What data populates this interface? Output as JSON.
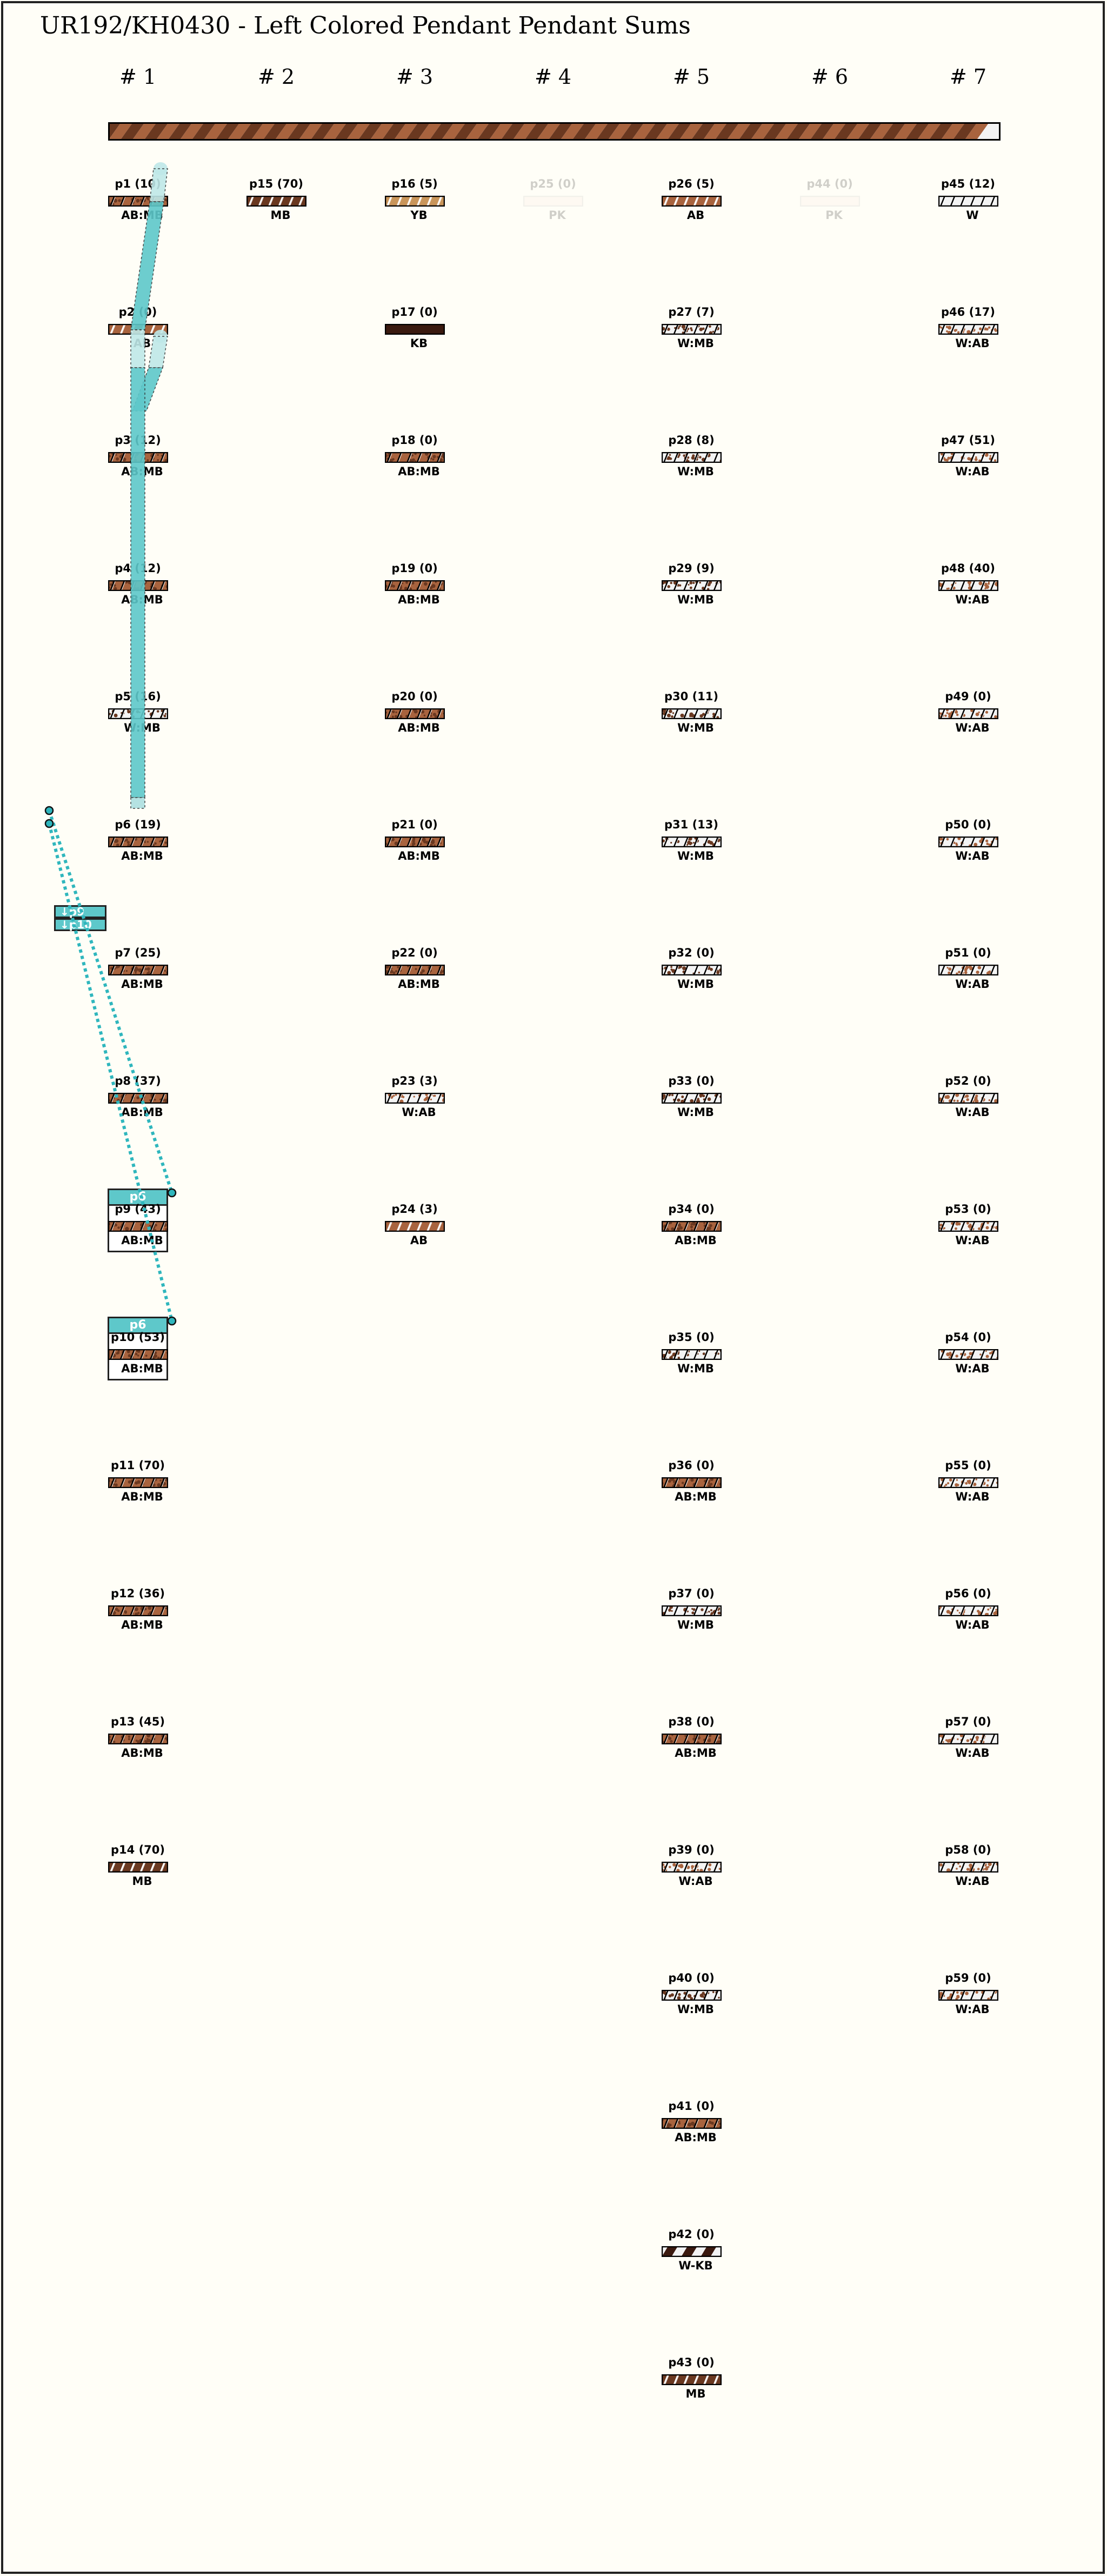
{
  "title": "UR192/KH0430 - Left Colored Pendant Pendant Sums",
  "colors": {
    "AB": "#a8633e",
    "MB": "#6a3820",
    "KB": "#3b1a10",
    "YB": "#c9955a",
    "W": "#f3f3f3",
    "PK": "#fbe6de",
    "teal": "#5ec8ca",
    "teal_dark": "#2fb6bd",
    "background": "#fffef7"
  },
  "main_cord": {
    "color": "AB:MB"
  },
  "columns": [
    {
      "label": "# 1",
      "pendants": [
        {
          "label": "p1 (10)",
          "color": "AB:MB"
        },
        {
          "label": "p2 (0)",
          "color": "AB"
        },
        {
          "label": "p3 (12)",
          "color": "AB:MB"
        },
        {
          "label": "p4 (12)",
          "color": "AB:MB"
        },
        {
          "label": "p5 (16)",
          "color": "W:MB"
        },
        {
          "label": "p6 (19)",
          "color": "AB:MB",
          "markers": [
            "↓p9",
            "↓p10"
          ]
        },
        {
          "label": "p7 (25)",
          "color": "AB:MB"
        },
        {
          "label": "p8 (37)",
          "color": "AB:MB"
        },
        {
          "label": "p9 (43)",
          "color": "AB:MB",
          "parent": "p6"
        },
        {
          "label": "p10 (53)",
          "color": "AB:MB",
          "parent": "p6"
        },
        {
          "label": "p11 (70)",
          "color": "AB:MB"
        },
        {
          "label": "p12 (36)",
          "color": "AB:MB"
        },
        {
          "label": "p13 (45)",
          "color": "AB:MB"
        },
        {
          "label": "p14 (70)",
          "color": "MB"
        }
      ]
    },
    {
      "label": "# 2",
      "pendants": [
        {
          "label": "p15 (70)",
          "color": "MB"
        }
      ]
    },
    {
      "label": "# 3",
      "pendants": [
        {
          "label": "p16 (5)",
          "color": "YB"
        },
        {
          "label": "p17 (0)",
          "color": "KB"
        },
        {
          "label": "p18 (0)",
          "color": "AB:MB"
        },
        {
          "label": "p19 (0)",
          "color": "AB:MB"
        },
        {
          "label": "p20 (0)",
          "color": "AB:MB"
        },
        {
          "label": "p21 (0)",
          "color": "AB:MB"
        },
        {
          "label": "p22 (0)",
          "color": "AB:MB"
        },
        {
          "label": "p23 (3)",
          "color": "W:AB"
        },
        {
          "label": "p24 (3)",
          "color": "AB"
        }
      ]
    },
    {
      "label": "# 4",
      "pendants": [
        {
          "label": "p25 (0)",
          "color": "PK",
          "faded": true
        }
      ]
    },
    {
      "label": "# 5",
      "pendants": [
        {
          "label": "p26 (5)",
          "color": "AB"
        },
        {
          "label": "p27 (7)",
          "color": "W:MB"
        },
        {
          "label": "p28 (8)",
          "color": "W:MB"
        },
        {
          "label": "p29 (9)",
          "color": "W:MB"
        },
        {
          "label": "p30 (11)",
          "color": "W:MB"
        },
        {
          "label": "p31 (13)",
          "color": "W:MB"
        },
        {
          "label": "p32 (0)",
          "color": "W:MB"
        },
        {
          "label": "p33 (0)",
          "color": "W:MB"
        },
        {
          "label": "p34 (0)",
          "color": "AB:MB"
        },
        {
          "label": "p35 (0)",
          "color": "W:MB"
        },
        {
          "label": "p36 (0)",
          "color": "AB:MB"
        },
        {
          "label": "p37 (0)",
          "color": "W:MB"
        },
        {
          "label": "p38 (0)",
          "color": "AB:MB"
        },
        {
          "label": "p39 (0)",
          "color": "W:AB"
        },
        {
          "label": "p40 (0)",
          "color": "W:MB"
        },
        {
          "label": "p41 (0)",
          "color": "AB:MB"
        },
        {
          "label": "p42 (0)",
          "color": "W-KB"
        },
        {
          "label": "p43 (0)",
          "color": "MB"
        }
      ]
    },
    {
      "label": "# 6",
      "pendants": [
        {
          "label": "p44 (0)",
          "color": "PK",
          "faded": true
        }
      ]
    },
    {
      "label": "# 7",
      "pendants": [
        {
          "label": "p45 (12)",
          "color": "W"
        },
        {
          "label": "p46 (17)",
          "color": "W:AB"
        },
        {
          "label": "p47 (51)",
          "color": "W:AB"
        },
        {
          "label": "p48 (40)",
          "color": "W:AB"
        },
        {
          "label": "p49 (0)",
          "color": "W:AB"
        },
        {
          "label": "p50 (0)",
          "color": "W:AB"
        },
        {
          "label": "p51 (0)",
          "color": "W:AB"
        },
        {
          "label": "p52 (0)",
          "color": "W:AB"
        },
        {
          "label": "p53 (0)",
          "color": "W:AB"
        },
        {
          "label": "p54 (0)",
          "color": "W:AB"
        },
        {
          "label": "p55 (0)",
          "color": "W:AB"
        },
        {
          "label": "p56 (0)",
          "color": "W:AB"
        },
        {
          "label": "p57 (0)",
          "color": "W:AB"
        },
        {
          "label": "p58 (0)",
          "color": "W:AB"
        },
        {
          "label": "p59 (0)",
          "color": "W:AB"
        }
      ]
    }
  ]
}
